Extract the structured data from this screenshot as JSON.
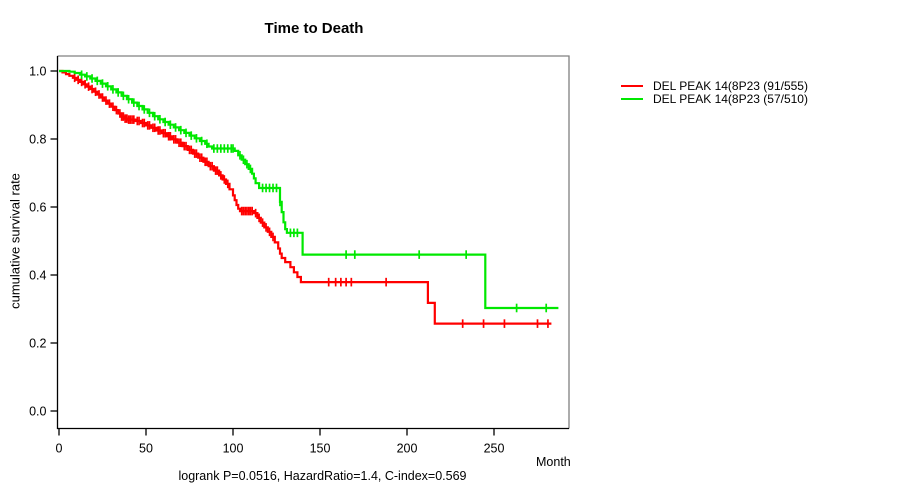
{
  "footer": "logrank P=0.0516, HazardRatio=1.4, C-index=0.569",
  "chart_data": {
    "type": "line",
    "subtype": "kaplan-meier-step-survival",
    "title": "Time to Death",
    "xlabel": "Month",
    "ylabel": "cumulative survival rate",
    "xlim": [
      0,
      293
    ],
    "ylim": [
      0,
      1
    ],
    "xticks": [
      0,
      50,
      100,
      150,
      200,
      250
    ],
    "yticks": [
      0.0,
      0.2,
      0.4,
      0.6,
      0.8,
      1.0
    ],
    "grid": false,
    "legend_position": "right-outside-top",
    "axis_color": "#000000",
    "box_color": "#808080",
    "series": [
      {
        "name": "DEL PEAK 14(8P23 (91/555)",
        "color": "#ff0000",
        "end_month": 283,
        "steps": [
          [
            0,
            1.0
          ],
          [
            2,
            0.996
          ],
          [
            4,
            0.991
          ],
          [
            6,
            0.986
          ],
          [
            8,
            0.98
          ],
          [
            10,
            0.974
          ],
          [
            12,
            0.968
          ],
          [
            14,
            0.961
          ],
          [
            16,
            0.954
          ],
          [
            18,
            0.947
          ],
          [
            20,
            0.939
          ],
          [
            22,
            0.931
          ],
          [
            24,
            0.922
          ],
          [
            26,
            0.913
          ],
          [
            28,
            0.904
          ],
          [
            30,
            0.895
          ],
          [
            32,
            0.885
          ],
          [
            34,
            0.875
          ],
          [
            36,
            0.866
          ],
          [
            38,
            0.86
          ],
          [
            40,
            0.857
          ],
          [
            44,
            0.853
          ],
          [
            47,
            0.847
          ],
          [
            50,
            0.84
          ],
          [
            53,
            0.833
          ],
          [
            56,
            0.825
          ],
          [
            59,
            0.817
          ],
          [
            62,
            0.808
          ],
          [
            65,
            0.799
          ],
          [
            68,
            0.789
          ],
          [
            71,
            0.779
          ],
          [
            74,
            0.768
          ],
          [
            77,
            0.757
          ],
          [
            80,
            0.745
          ],
          [
            83,
            0.733
          ],
          [
            86,
            0.72
          ],
          [
            89,
            0.707
          ],
          [
            92,
            0.693
          ],
          [
            94,
            0.681
          ],
          [
            96,
            0.668
          ],
          [
            98,
            0.652
          ],
          [
            100,
            0.634
          ],
          [
            101,
            0.62
          ],
          [
            102,
            0.606
          ],
          [
            103,
            0.595
          ],
          [
            104,
            0.588
          ],
          [
            112,
            0.582
          ],
          [
            114,
            0.568
          ],
          [
            116,
            0.554
          ],
          [
            118,
            0.54
          ],
          [
            120,
            0.527
          ],
          [
            122,
            0.512
          ],
          [
            124,
            0.496
          ],
          [
            126,
            0.478
          ],
          [
            127,
            0.463
          ],
          [
            128,
            0.45
          ],
          [
            130,
            0.438
          ],
          [
            133,
            0.423
          ],
          [
            135,
            0.408
          ],
          [
            137,
            0.394
          ],
          [
            139,
            0.379
          ],
          [
            212,
            0.318
          ],
          [
            216,
            0.257
          ]
        ],
        "censor_ticks": [
          9,
          11,
          13,
          15,
          17,
          19,
          21,
          23,
          25,
          27,
          29,
          31,
          33,
          35,
          36,
          37,
          38,
          39,
          40,
          41,
          42,
          43,
          45,
          46,
          48,
          49,
          51,
          52,
          54,
          55,
          57,
          58,
          60,
          61,
          63,
          64,
          66,
          67,
          69,
          70,
          72,
          73,
          75,
          76,
          78,
          79,
          81,
          82,
          84,
          85,
          87,
          88,
          90,
          91,
          93,
          95,
          97,
          105,
          106,
          107,
          108,
          109,
          110,
          111,
          113,
          115,
          117,
          119,
          121,
          123,
          155,
          159,
          162,
          165,
          168,
          188,
          232,
          244,
          256,
          275,
          281
        ]
      },
      {
        "name": "DEL PEAK 14(8P23 (57/510)",
        "color": "#00e800",
        "end_month": 287,
        "steps": [
          [
            0,
            1.0
          ],
          [
            6,
            0.998
          ],
          [
            9,
            0.994
          ],
          [
            12,
            0.989
          ],
          [
            15,
            0.984
          ],
          [
            18,
            0.978
          ],
          [
            21,
            0.971
          ],
          [
            24,
            0.963
          ],
          [
            27,
            0.955
          ],
          [
            30,
            0.946
          ],
          [
            33,
            0.937
          ],
          [
            36,
            0.927
          ],
          [
            39,
            0.917
          ],
          [
            42,
            0.907
          ],
          [
            45,
            0.897
          ],
          [
            48,
            0.887
          ],
          [
            51,
            0.877
          ],
          [
            54,
            0.867
          ],
          [
            57,
            0.858
          ],
          [
            60,
            0.85
          ],
          [
            63,
            0.842
          ],
          [
            66,
            0.834
          ],
          [
            69,
            0.826
          ],
          [
            72,
            0.818
          ],
          [
            75,
            0.81
          ],
          [
            78,
            0.802
          ],
          [
            81,
            0.794
          ],
          [
            84,
            0.786
          ],
          [
            86,
            0.778
          ],
          [
            88,
            0.772
          ],
          [
            101,
            0.765
          ],
          [
            103,
            0.752
          ],
          [
            105,
            0.739
          ],
          [
            107,
            0.726
          ],
          [
            109,
            0.712
          ],
          [
            111,
            0.698
          ],
          [
            112,
            0.684
          ],
          [
            113,
            0.67
          ],
          [
            115,
            0.656
          ],
          [
            127,
            0.615
          ],
          [
            128,
            0.585
          ],
          [
            129,
            0.555
          ],
          [
            130,
            0.535
          ],
          [
            131,
            0.524
          ],
          [
            140,
            0.46
          ],
          [
            245,
            0.303
          ]
        ],
        "censor_ticks": [
          13,
          16,
          19,
          22,
          25,
          28,
          31,
          34,
          37,
          40,
          43,
          46,
          49,
          52,
          55,
          58,
          61,
          64,
          67,
          70,
          73,
          76,
          79,
          82,
          85,
          89,
          91,
          93,
          95,
          97,
          99,
          100,
          104,
          106,
          108,
          110,
          117,
          119,
          121,
          123,
          125,
          127,
          133,
          135,
          137,
          165,
          170,
          207,
          234,
          263,
          280
        ]
      }
    ]
  },
  "legend": {
    "items": [
      {
        "label": "DEL PEAK 14(8P23 (91/555)",
        "color": "#ff0000"
      },
      {
        "label": "DEL PEAK 14(8P23 (57/510)",
        "color": "#00e800"
      }
    ]
  }
}
